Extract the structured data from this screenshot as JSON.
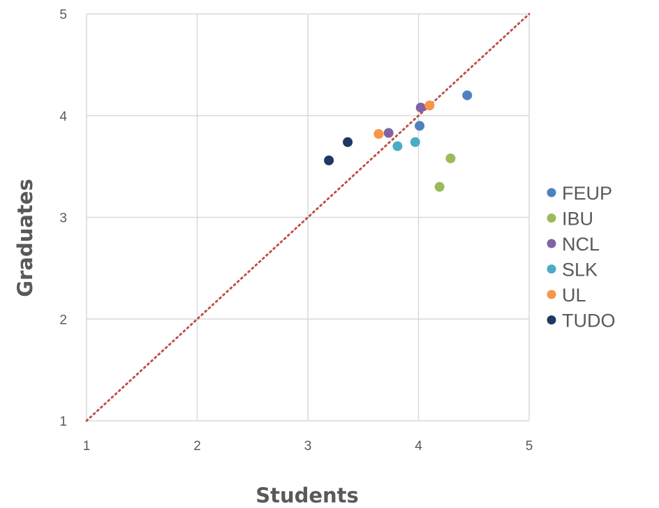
{
  "chart_data": {
    "type": "scatter",
    "title": "",
    "xlabel": "Students",
    "ylabel": "Graduates",
    "xlim": [
      1,
      5
    ],
    "ylim": [
      1,
      5
    ],
    "xticks": [
      "1",
      "2",
      "3",
      "4",
      "5"
    ],
    "yticks": [
      "1",
      "2",
      "3",
      "4",
      "5"
    ],
    "grid": true,
    "legend_position": "right",
    "reference_line": {
      "style": "dotted",
      "color": "#c0504d",
      "from": [
        1,
        1
      ],
      "to": [
        5,
        5
      ]
    },
    "series": [
      {
        "name": "FEUP",
        "color": "#4f81bd",
        "points": [
          {
            "x": 4.44,
            "y": 4.2
          },
          {
            "x": 4.01,
            "y": 3.9
          }
        ]
      },
      {
        "name": "IBU",
        "color": "#9bbb59",
        "points": [
          {
            "x": 4.29,
            "y": 3.58
          },
          {
            "x": 4.19,
            "y": 3.3
          }
        ]
      },
      {
        "name": "NCL",
        "color": "#8064a2",
        "points": [
          {
            "x": 4.02,
            "y": 4.08
          },
          {
            "x": 3.73,
            "y": 3.83
          }
        ]
      },
      {
        "name": "SLK",
        "color": "#4bacc6",
        "points": [
          {
            "x": 3.81,
            "y": 3.7
          },
          {
            "x": 3.97,
            "y": 3.74
          }
        ]
      },
      {
        "name": "UL",
        "color": "#f79646",
        "points": [
          {
            "x": 4.1,
            "y": 4.1
          },
          {
            "x": 3.64,
            "y": 3.82
          }
        ]
      },
      {
        "name": "TUDO",
        "color": "#1f3864",
        "points": [
          {
            "x": 3.36,
            "y": 3.74
          },
          {
            "x": 3.19,
            "y": 3.56
          }
        ]
      }
    ]
  }
}
